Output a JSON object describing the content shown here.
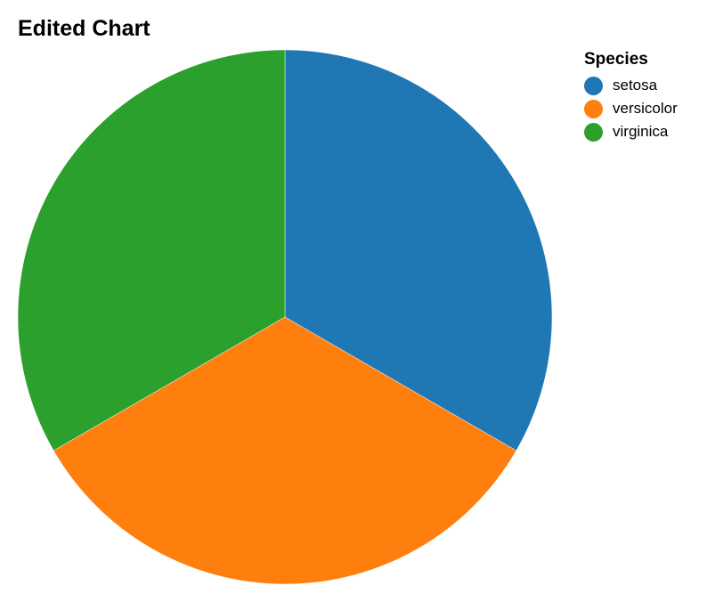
{
  "chart_data": {
    "type": "pie",
    "title": "Edited Chart",
    "legend_title": "Species",
    "legend_position": "top-right",
    "categories": [
      "setosa",
      "versicolor",
      "virginica"
    ],
    "values": [
      1,
      1,
      1
    ],
    "colors": [
      "#1f77b4",
      "#ff7f0e",
      "#2ca02c"
    ]
  }
}
